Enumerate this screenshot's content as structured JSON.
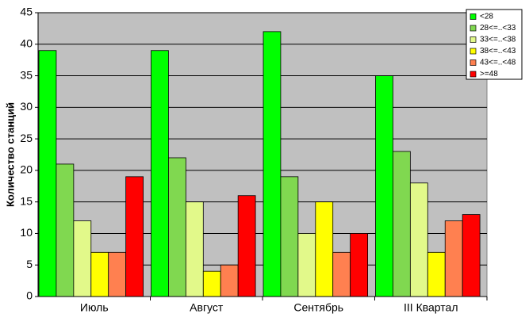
{
  "chart_data": {
    "type": "bar",
    "y_label": "Количество станций",
    "categories": [
      "Июль",
      "Август",
      "Сентябрь",
      "III Квартал"
    ],
    "series": [
      {
        "name": "<28",
        "color": "#00ff00",
        "values": [
          39,
          39,
          42,
          35
        ]
      },
      {
        "name": "28<=..<33",
        "color": "#80d850",
        "values": [
          21,
          22,
          19,
          23
        ]
      },
      {
        "name": "33<=..<38",
        "color": "#e2f98a",
        "values": [
          12,
          15,
          10,
          18
        ]
      },
      {
        "name": "38<=..<43",
        "color": "#ffff00",
        "values": [
          7,
          4,
          15,
          7
        ]
      },
      {
        "name": "43<=..<48",
        "color": "#ff8050",
        "values": [
          7,
          5,
          7,
          12
        ]
      },
      {
        "name": ">=48",
        "color": "#ff0000",
        "values": [
          19,
          16,
          10,
          13
        ]
      }
    ],
    "ylim": [
      0,
      45
    ],
    "yticks": [
      0,
      5,
      10,
      15,
      20,
      25,
      30,
      35,
      40,
      45
    ],
    "grid": true,
    "legend": "top-right"
  }
}
